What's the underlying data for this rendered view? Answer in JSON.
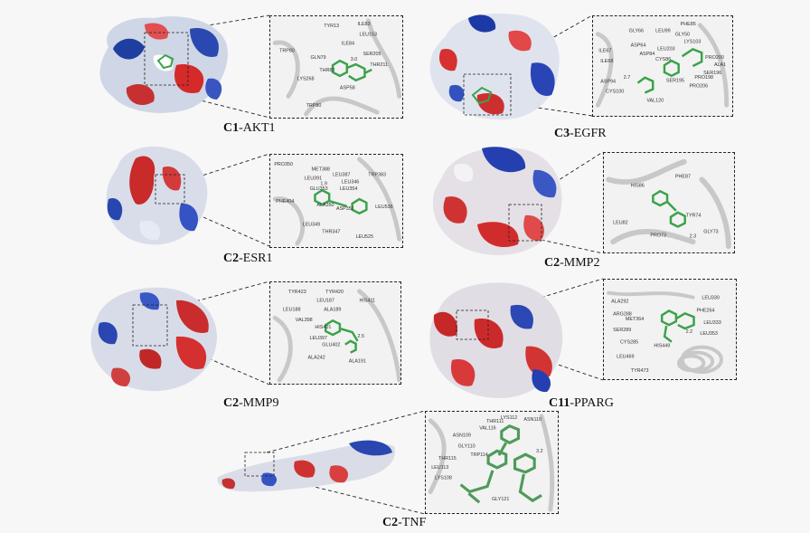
{
  "panels": [
    {
      "compound": "C1",
      "target": "-AKT1",
      "residues": [
        "TYR13",
        "ILE83",
        "LEU153",
        "TRP80",
        "ILE84",
        "SER205",
        "GLN79",
        "ASP58",
        "THR82",
        "LYS268",
        "THR211",
        "TRP80"
      ]
    },
    {
      "compound": "C3",
      "target": "-EGFR",
      "residues": [
        "PHE85",
        "GLY66",
        "ASP64",
        "LEU99",
        "GLY50",
        "LYS103",
        "ILE67",
        "ILE68",
        "ASP84",
        "LEU203",
        "CYS86",
        "PRO200",
        "SER196",
        "SER195",
        "PRO206",
        "ALA1",
        "PRO198",
        "VAL120",
        "CYS100",
        "ASP94"
      ]
    },
    {
      "compound": "C2",
      "target": "-ESR1",
      "residues": [
        "PRO350",
        "MET388",
        "LEU387",
        "TRP383",
        "LEU391",
        "LEU354",
        "GLU353",
        "LEU346",
        "ALA350",
        "PHE404",
        "ASP351",
        "LEU536",
        "LEU349",
        "THR347",
        "LEU525"
      ]
    },
    {
      "compound": "C2",
      "target": "-MMP2",
      "residues": [
        "PHE87",
        "HIS86",
        "LEU82",
        "TYR74",
        "PRO73",
        "GLY73"
      ]
    },
    {
      "compound": "C2",
      "target": "-MMP9",
      "residues": [
        "TYR423",
        "LEU188",
        "TYR420",
        "HIS411",
        "LEU187",
        "ALA189",
        "VAL398",
        "HIS401",
        "LEU397",
        "GLU402",
        "ALA242",
        "ALA191"
      ]
    },
    {
      "compound": "C11",
      "target": "-PPARG",
      "residues": [
        "ALA292",
        "LEU330",
        "ARG288",
        "PHE264",
        "MET364",
        "LEU333",
        "HIS449",
        "SER289",
        "LEU353",
        "CYS285",
        "TYR473",
        "LEU469"
      ]
    },
    {
      "compound": "C2",
      "target": "-TNF",
      "residues": [
        "THR111",
        "ASN110",
        "ASN109",
        "VAL116",
        "LYS112",
        "GLY110",
        "THR115",
        "TRP114",
        "LYS108",
        "LEU113",
        "GLY121"
      ]
    }
  ],
  "distances": [
    "3.0",
    "2.7",
    "1.9",
    "2.3",
    "2.5",
    "2.2",
    "3.2"
  ]
}
